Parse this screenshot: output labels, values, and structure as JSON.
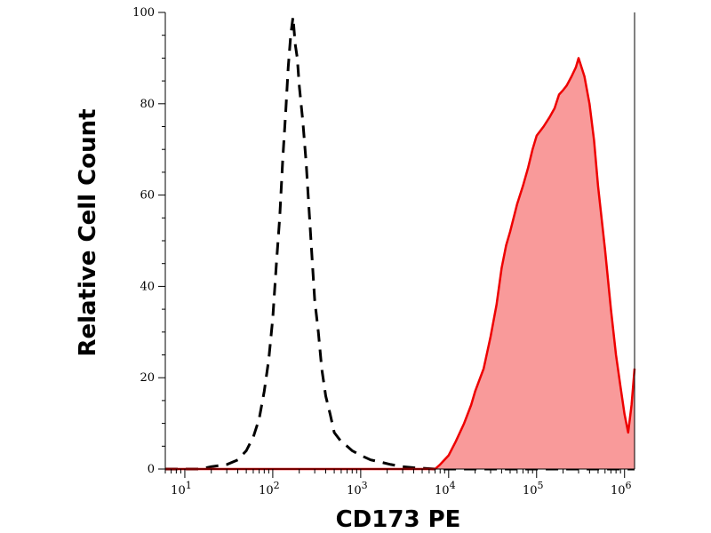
{
  "chart_data": {
    "type": "area",
    "title": "",
    "xlabel": "CD173 PE",
    "ylabel": "Relative Cell Count",
    "x_scale": "log",
    "xlim": [
      6,
      1300000
    ],
    "ylim": [
      0,
      100
    ],
    "grid": false,
    "legend": "none",
    "x_ticks": [
      {
        "value": 10,
        "base": "10",
        "exp": "1"
      },
      {
        "value": 100,
        "base": "10",
        "exp": "2"
      },
      {
        "value": 1000,
        "base": "10",
        "exp": "3"
      },
      {
        "value": 10000,
        "base": "10",
        "exp": "4"
      },
      {
        "value": 100000,
        "base": "10",
        "exp": "5"
      },
      {
        "value": 1000000,
        "base": "10",
        "exp": "6"
      }
    ],
    "y_ticks": [
      {
        "value": 0,
        "label": "0"
      },
      {
        "value": 20,
        "label": "20"
      },
      {
        "value": 40,
        "label": "40"
      },
      {
        "value": 60,
        "label": "60"
      },
      {
        "value": 80,
        "label": "80"
      },
      {
        "value": 100,
        "label": "100"
      }
    ],
    "series": [
      {
        "style": "dashed-line",
        "color": "#000000",
        "x": [
          6,
          15,
          20,
          30,
          40,
          50,
          60,
          70,
          80,
          90,
          100,
          110,
          120,
          130,
          140,
          150,
          160,
          170,
          180,
          190,
          200,
          220,
          240,
          260,
          280,
          300,
          330,
          360,
          400,
          450,
          500,
          600,
          700,
          800,
          1000,
          1300,
          1700,
          2200,
          3000,
          4000,
          7000,
          1300000
        ],
        "y": [
          0,
          0,
          0.5,
          1,
          2,
          4,
          7,
          11,
          17,
          24,
          33,
          45,
          55,
          68,
          78,
          88,
          95,
          99,
          93,
          90,
          84,
          76,
          67,
          56,
          46,
          37,
          30,
          22,
          16,
          12,
          8,
          6,
          5,
          4,
          3,
          2,
          1.5,
          1,
          0.5,
          0.3,
          0,
          0
        ]
      },
      {
        "style": "filled-area",
        "color": "#ee0000",
        "fill": "#f99a9a",
        "x": [
          6,
          7000,
          8000,
          10000,
          12000,
          15000,
          18000,
          20000,
          25000,
          30000,
          35000,
          40000,
          45000,
          50000,
          60000,
          70000,
          80000,
          90000,
          100000,
          120000,
          140000,
          160000,
          180000,
          200000,
          220000,
          250000,
          280000,
          300000,
          350000,
          400000,
          450000,
          500000,
          600000,
          700000,
          800000,
          900000,
          1000000,
          1100000,
          1200000,
          1300000
        ],
        "y": [
          0,
          0,
          1,
          3,
          6,
          10,
          14,
          17,
          22,
          29,
          36,
          44,
          49,
          52,
          58,
          62,
          66,
          70,
          73,
          75,
          77,
          79,
          82,
          83,
          84,
          86,
          88,
          90,
          86,
          80,
          72,
          62,
          48,
          35,
          25,
          18,
          12,
          8,
          14,
          22
        ]
      }
    ]
  }
}
